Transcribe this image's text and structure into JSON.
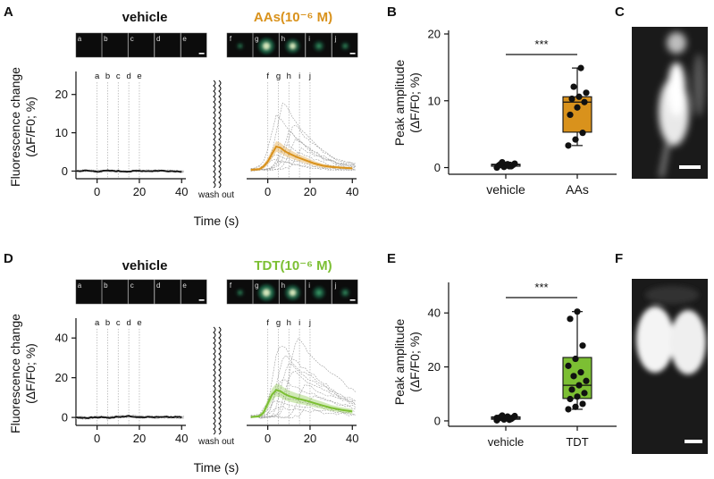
{
  "panels": {
    "A": "A",
    "B": "B",
    "C": "C",
    "D": "D",
    "E": "E",
    "F": "F"
  },
  "colors": {
    "aas": "#d9921c",
    "tdt": "#7cbf33",
    "vehicle_trace": "#111111",
    "trial_trace": "#9a9a9a"
  },
  "frame_labels_left": [
    "a",
    "b",
    "c",
    "d",
    "e"
  ],
  "frame_labels_right": [
    "f",
    "g",
    "h",
    "i",
    "j"
  ],
  "time_axis_label": "Time (s)",
  "wash_out": "wash out",
  "fluor_ylabel_line1": "Fluorescence change",
  "fluor_ylabel_line2": "(ΔF/F0; %)",
  "peak_ylabel_line1": "Peak amplitude",
  "peak_ylabel_line2": "(ΔF/F0; %)",
  "significance": "***",
  "chart_data": [
    {
      "id": "A",
      "type": "line",
      "left_title": "vehicle",
      "right_title": "AAs(10⁻⁶ M)",
      "xlabel": "Time (s)",
      "ylabel": "Fluorescence change (ΔF/F0; %)",
      "ylim": [
        -2,
        26
      ],
      "yticks": [
        0,
        10,
        20
      ],
      "xticks_left": [
        0,
        20,
        40
      ],
      "xticks_right": [
        0,
        20,
        40
      ],
      "xlim": [
        -10,
        42
      ],
      "marker_times_left": [
        0,
        5,
        10,
        15,
        20
      ],
      "marker_times_right": [
        0,
        5,
        10,
        15,
        20
      ],
      "series": [
        {
          "name": "vehicle mean",
          "x": [
            -10,
            -5,
            0,
            5,
            10,
            15,
            20,
            25,
            30,
            35,
            40
          ],
          "values": [
            0,
            0.1,
            -0.1,
            0.1,
            0,
            -0.1,
            0.1,
            0,
            0.1,
            0,
            -0.1
          ]
        },
        {
          "name": "AAs mean",
          "x": [
            -8,
            -4,
            -2,
            0,
            2,
            4,
            6,
            8,
            10,
            14,
            18,
            22,
            26,
            30,
            35,
            40
          ],
          "values": [
            0.3,
            0.5,
            1.2,
            2.5,
            4.5,
            6.4,
            6.1,
            5.2,
            4.6,
            3.6,
            2.8,
            2.0,
            1.4,
            1.1,
            0.9,
            0.7
          ],
          "band": [
            0.3,
            0.4,
            0.6,
            0.9,
            1.2,
            1.4,
            1.3,
            1.2,
            1.1,
            0.9,
            0.8,
            0.6,
            0.5,
            0.4,
            0.3,
            0.3
          ]
        }
      ]
    },
    {
      "id": "B",
      "type": "box",
      "categories": [
        "vehicle",
        "AAs"
      ],
      "ylabel": "Peak amplitude (ΔF/F0; %)",
      "ylim": [
        -1,
        20
      ],
      "yticks": [
        0,
        10,
        20
      ],
      "boxes": [
        {
          "name": "vehicle",
          "q1": 0.2,
          "median": 0.4,
          "q3": 0.5,
          "whisker_low": 0.0,
          "whisker_high": 0.8,
          "points": [
            0.0,
            0.1,
            0.2,
            0.3,
            0.3,
            0.4,
            0.5,
            0.5,
            0.6,
            0.8,
            0.2
          ]
        },
        {
          "name": "AAs",
          "q1": 5.3,
          "median": 9.8,
          "q3": 10.6,
          "whisker_low": 3.3,
          "whisker_high": 14.9,
          "points": [
            3.3,
            4.2,
            5.2,
            7.9,
            9.0,
            9.8,
            10.3,
            10.6,
            11.2,
            12.1,
            14.9
          ]
        }
      ],
      "significance": "***"
    },
    {
      "id": "D",
      "type": "line",
      "left_title": "vehicle",
      "right_title": "TDT(10⁻⁶ M)",
      "xlabel": "Time (s)",
      "ylabel": "Fluorescence change (ΔF/F0; %)",
      "ylim": [
        -4,
        50
      ],
      "yticks": [
        0,
        20,
        40
      ],
      "xticks_left": [
        0,
        20,
        40
      ],
      "xticks_right": [
        0,
        20,
        40
      ],
      "xlim": [
        -10,
        42
      ],
      "marker_times_left": [
        0,
        5,
        10,
        15,
        20
      ],
      "marker_times_right": [
        0,
        5,
        10,
        15,
        20
      ],
      "series": [
        {
          "name": "vehicle mean",
          "x": [
            -10,
            -5,
            0,
            5,
            10,
            15,
            20,
            25,
            30,
            35,
            40
          ],
          "values": [
            0,
            -0.3,
            0.2,
            -0.2,
            0.4,
            0.6,
            0.3,
            0.2,
            0.1,
            0.2,
            0.1
          ]
        },
        {
          "name": "TDT mean",
          "x": [
            -8,
            -4,
            -2,
            0,
            2,
            4,
            6,
            8,
            10,
            14,
            18,
            22,
            26,
            30,
            35,
            40
          ],
          "values": [
            0.2,
            0.6,
            2.5,
            7.0,
            11.5,
            13.8,
            13.2,
            11.8,
            10.8,
            9.5,
            8.5,
            7.2,
            6.0,
            4.8,
            3.8,
            3.0
          ],
          "band": [
            0.5,
            0.7,
            1.5,
            2.5,
            3.0,
            3.2,
            3.1,
            3.0,
            2.8,
            2.5,
            2.3,
            2.0,
            1.8,
            1.5,
            1.3,
            1.2
          ]
        }
      ]
    },
    {
      "id": "E",
      "type": "box",
      "categories": [
        "vehicle",
        "TDT"
      ],
      "ylabel": "Peak amplitude (ΔF/F0; %)",
      "ylim": [
        -2,
        50
      ],
      "yticks": [
        0,
        20,
        40
      ],
      "boxes": [
        {
          "name": "vehicle",
          "q1": 0.6,
          "median": 1.0,
          "q3": 1.5,
          "whisker_low": 0.2,
          "whisker_high": 2.0,
          "points": [
            0.2,
            0.5,
            0.7,
            0.9,
            1.0,
            1.2,
            1.4,
            1.6,
            1.8,
            2.0,
            0.4,
            1.1
          ]
        },
        {
          "name": "TDT",
          "q1": 8.3,
          "median": 13.2,
          "q3": 23.5,
          "whisker_low": 4.3,
          "whisker_high": 40.5,
          "points": [
            4.3,
            5.2,
            6.3,
            8.1,
            9.0,
            10.3,
            11.6,
            13.2,
            14.8,
            16.6,
            18.0,
            20.4,
            23.0,
            27.9,
            37.8,
            40.5
          ]
        }
      ],
      "significance": "***"
    }
  ]
}
